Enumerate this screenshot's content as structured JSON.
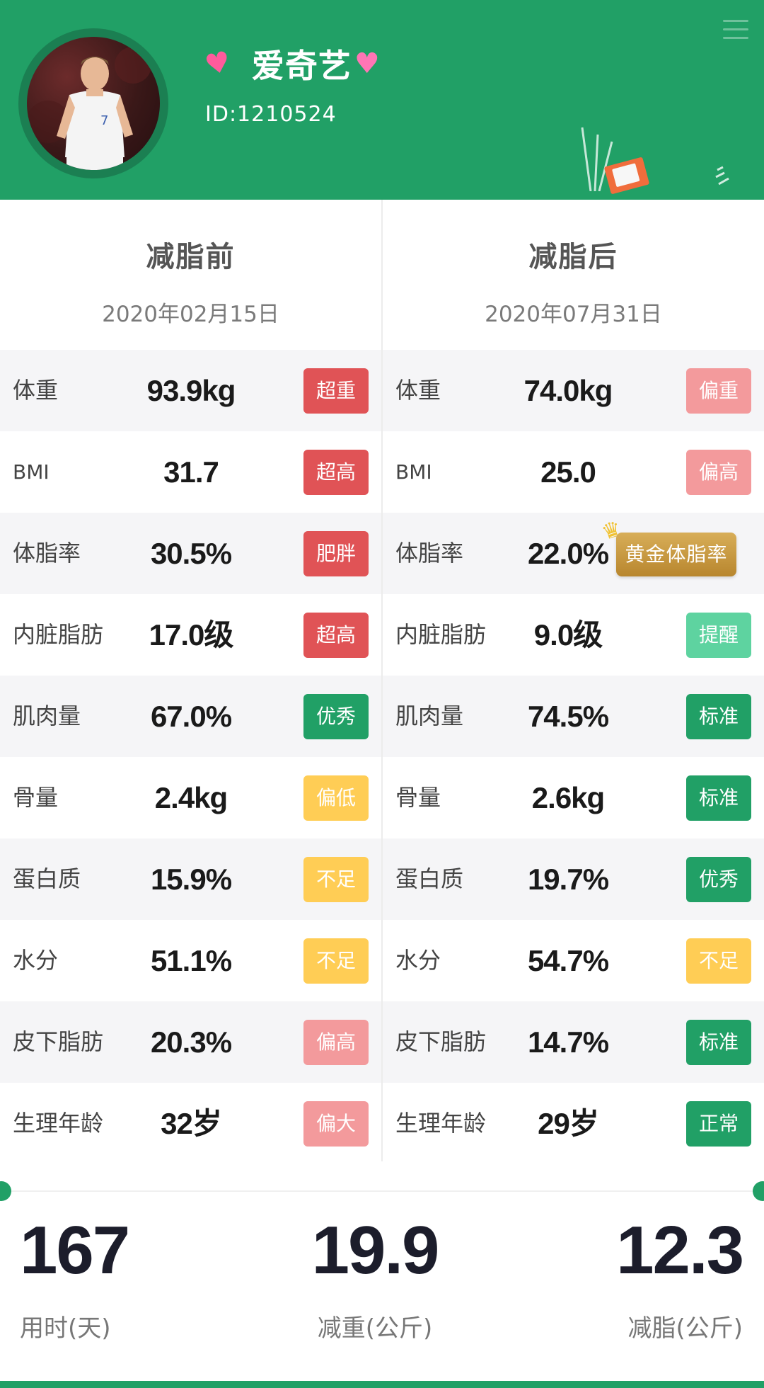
{
  "header": {
    "username": "爱奇艺",
    "user_id": "ID:1210524",
    "accent_color": "#21a066"
  },
  "before": {
    "title": "减脂前",
    "date": "2020年02月15日",
    "rows": [
      {
        "label": "体重",
        "value": "93.9kg",
        "status": "超重"
      },
      {
        "label": "BMI",
        "value": "31.7",
        "status": "超高"
      },
      {
        "label": "体脂率",
        "value": "30.5%",
        "status": "肥胖"
      },
      {
        "label": "内脏脂肪",
        "value": "17.0级",
        "status": "超高"
      },
      {
        "label": "肌肉量",
        "value": "67.0%",
        "status": "优秀"
      },
      {
        "label": "骨量",
        "value": "2.4kg",
        "status": "偏低"
      },
      {
        "label": "蛋白质",
        "value": "15.9%",
        "status": "不足"
      },
      {
        "label": "水分",
        "value": "51.1%",
        "status": "不足"
      },
      {
        "label": "皮下脂肪",
        "value": "20.3%",
        "status": "偏高"
      },
      {
        "label": "生理年龄",
        "value": "32岁",
        "status": "偏大"
      }
    ]
  },
  "after": {
    "title": "减脂后",
    "date": "2020年07月31日",
    "rows": [
      {
        "label": "体重",
        "value": "74.0kg",
        "status": "偏重"
      },
      {
        "label": "BMI",
        "value": "25.0",
        "status": "偏高"
      },
      {
        "label": "体脂率",
        "value": "22.0%",
        "status": "黄金体脂率"
      },
      {
        "label": "内脏脂肪",
        "value": "9.0级",
        "status": "提醒"
      },
      {
        "label": "肌肉量",
        "value": "74.5%",
        "status": "标准"
      },
      {
        "label": "骨量",
        "value": "2.6kg",
        "status": "标准"
      },
      {
        "label": "蛋白质",
        "value": "19.7%",
        "status": "优秀"
      },
      {
        "label": "水分",
        "value": "54.7%",
        "status": "不足"
      },
      {
        "label": "皮下脂肪",
        "value": "14.7%",
        "status": "标准"
      },
      {
        "label": "生理年龄",
        "value": "29岁",
        "status": "正常"
      }
    ]
  },
  "summary": {
    "days": {
      "value": "167",
      "label": "用时(天)"
    },
    "weight_lost": {
      "value": "19.9",
      "label": "减重(公斤)"
    },
    "fat_lost": {
      "value": "12.3",
      "label": "减脂(公斤)"
    }
  }
}
